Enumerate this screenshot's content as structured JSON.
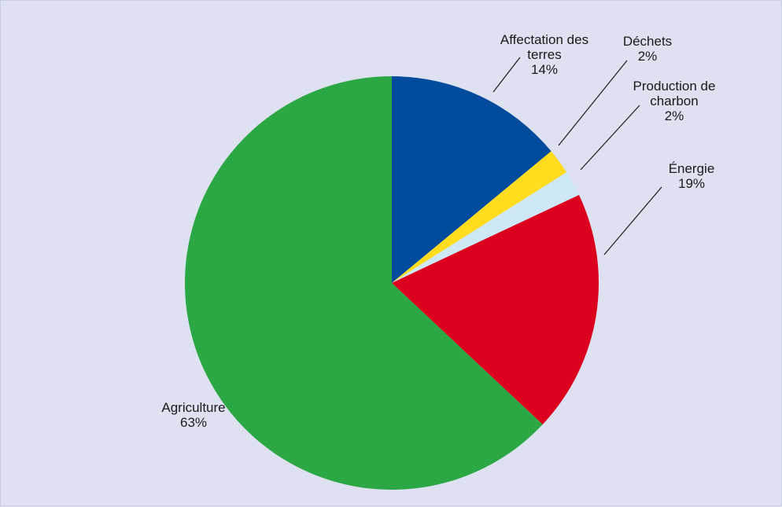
{
  "chart_data": {
    "type": "pie",
    "slices": [
      {
        "label_lines": [
          "Affectation des",
          "terres"
        ],
        "value": 14,
        "value_label": "14%",
        "color": "#004b9b"
      },
      {
        "label_lines": [
          "Déchets"
        ],
        "value": 2,
        "value_label": "2%",
        "color": "#ffdc1e"
      },
      {
        "label_lines": [
          "Production de",
          "charbon"
        ],
        "value": 2,
        "value_label": "2%",
        "color": "#cfe8f6"
      },
      {
        "label_lines": [
          "Énergie"
        ],
        "value": 19,
        "value_label": "19%",
        "color": "#dc001e"
      },
      {
        "label_lines": [
          "Agriculture"
        ],
        "value": 63,
        "value_label": "63%",
        "color": "#2ba744"
      }
    ],
    "start_angle": "12 o'clock",
    "direction": "clockwise",
    "legend": "none (labels placed beside slices)",
    "background": "#dde1f0"
  }
}
